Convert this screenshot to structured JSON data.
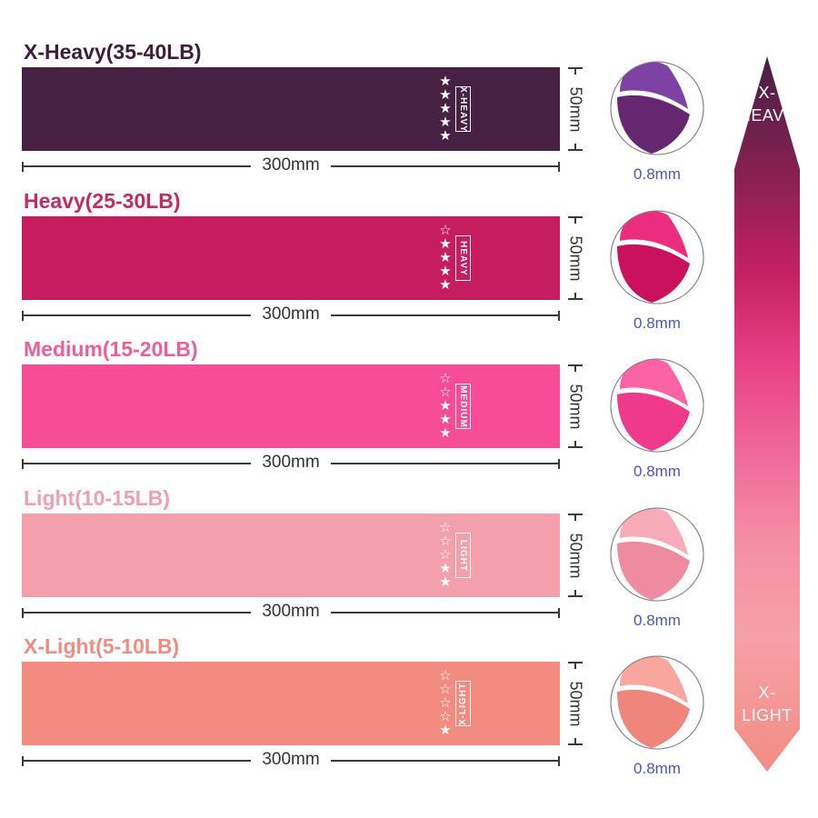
{
  "bands": [
    {
      "title": "X-Heavy(35-40LB)",
      "grade_label": "X-HEAVY",
      "stars_filled": 5,
      "stars_total": 5,
      "width_label": "300mm",
      "height_label": "50mm",
      "thickness_label": "0.8mm",
      "band_color": "#472144",
      "title_color": "#3e1e3d",
      "fold_flap_color": "#7d42a4",
      "fold_body_color": "#65276f",
      "label_flipped": false
    },
    {
      "title": "Heavy(25-30LB)",
      "grade_label": "HEAVY",
      "stars_filled": 4,
      "stars_total": 5,
      "width_label": "300mm",
      "height_label": "50mm",
      "thickness_label": "0.8mm",
      "band_color": "#c51d5e",
      "title_color": "#c02b61",
      "fold_flap_color": "#ec2c7e",
      "fold_body_color": "#c9115e",
      "label_flipped": false
    },
    {
      "title": "Medium(15-20LB)",
      "grade_label": "MEDIUM",
      "stars_filled": 3,
      "stars_total": 5,
      "width_label": "300mm",
      "height_label": "50mm",
      "thickness_label": "0.8mm",
      "band_color": "#f64d96",
      "title_color": "#ee5e9a",
      "fold_flap_color": "#fb63a4",
      "fold_body_color": "#ef3a8c",
      "label_flipped": false
    },
    {
      "title": "Light(10-15LB)",
      "grade_label": "LIGHT",
      "stars_filled": 2,
      "stars_total": 5,
      "width_label": "300mm",
      "height_label": "50mm",
      "thickness_label": "0.8mm",
      "band_color": "#f4a0ac",
      "title_color": "#efa0b0",
      "fold_flap_color": "#f8abb9",
      "fold_body_color": "#ef8ba0",
      "label_flipped": false
    },
    {
      "title": "X-Light(5-10LB)",
      "grade_label": "X-LIGHT",
      "stars_filled": 1,
      "stars_total": 5,
      "width_label": "300mm",
      "height_label": "50mm",
      "thickness_label": "0.8mm",
      "band_color": "#f28c80",
      "title_color": "#ef8d84",
      "fold_flap_color": "#f9a69e",
      "fold_body_color": "#ef867c",
      "label_flipped": true
    }
  ],
  "star_glyphs": {
    "filled": "★",
    "hollow": "☆"
  },
  "scale_arrow": {
    "top_label_line1": "X-",
    "top_label_line2": "HEAVY",
    "bottom_label_line1": "X-",
    "bottom_label_line2": "LIGHT",
    "gradient": [
      "#471f46",
      "#85214f",
      "#c42062",
      "#e94185",
      "#f06a9b",
      "#f48fa5",
      "#f7a0a8",
      "#f18d82"
    ],
    "gradient_offsets": [
      0,
      0.16,
      0.3,
      0.43,
      0.56,
      0.68,
      0.81,
      1
    ]
  },
  "accents": {
    "thickness_text_color": "#4c57b2",
    "dimension_color": "#3a3a3a"
  }
}
